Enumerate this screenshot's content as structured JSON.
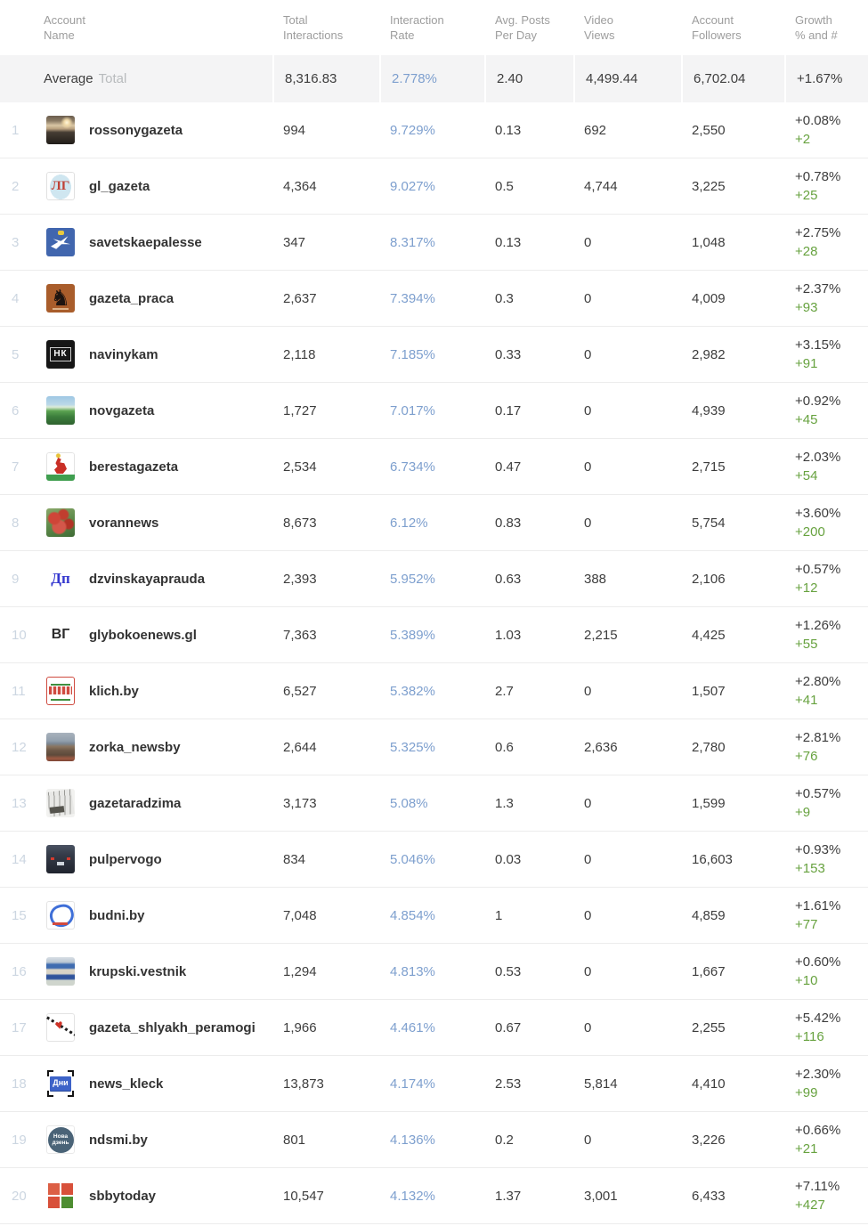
{
  "colors": {
    "link_blue": "#7d9fce",
    "growth_green": "#67a23f",
    "rank_gray": "#ccd6e1",
    "average_row_bg": "#f4f4f5",
    "header_gray": "#9d9d9d"
  },
  "table": {
    "columns": [
      {
        "line1": "Account",
        "line2": "Name"
      },
      {
        "line1": "Total",
        "line2": "Interactions"
      },
      {
        "line1": "Interaction",
        "line2": "Rate"
      },
      {
        "line1": "Avg. Posts",
        "line2": "Per Day"
      },
      {
        "line1": "Video",
        "line2": "Views"
      },
      {
        "line1": "Account",
        "line2": "Followers"
      },
      {
        "line1": "Growth",
        "line2": "% and #"
      }
    ],
    "average_row": {
      "label_primary": "Average",
      "label_secondary": "Total",
      "total_interactions": "8,316.83",
      "interaction_rate": "2.778%",
      "avg_posts_per_day": "2.40",
      "video_views": "4,499.44",
      "account_followers": "6,702.04",
      "growth_percent": "+1.67%"
    },
    "accounts": [
      {
        "rank": "1",
        "name": "rossonygazeta",
        "avatar": "sunset-lake-photo",
        "avatar_text": "",
        "total_interactions": "994",
        "interaction_rate": "9.729%",
        "avg_posts_per_day": "0.13",
        "video_views": "692",
        "account_followers": "2,550",
        "growth_percent": "+0.08%",
        "growth_count": "+2"
      },
      {
        "rank": "2",
        "name": "gl_gazeta",
        "avatar": "red-monogram-map",
        "avatar_text": "ЛГ",
        "total_interactions": "4,364",
        "interaction_rate": "9.027%",
        "avg_posts_per_day": "0.5",
        "video_views": "4,744",
        "account_followers": "3,225",
        "growth_percent": "+0.78%",
        "growth_count": "+25"
      },
      {
        "rank": "3",
        "name": "savetskaepalesse",
        "avatar": "blue-shield-swallow",
        "avatar_text": "",
        "total_interactions": "347",
        "interaction_rate": "8.317%",
        "avg_posts_per_day": "0.13",
        "video_views": "0",
        "account_followers": "1,048",
        "growth_percent": "+2.75%",
        "growth_count": "+28"
      },
      {
        "rank": "4",
        "name": "gazeta_praca",
        "avatar": "orange-horse-emblem",
        "avatar_text": "",
        "total_interactions": "2,637",
        "interaction_rate": "7.394%",
        "avg_posts_per_day": "0.3",
        "video_views": "0",
        "account_followers": "4,009",
        "growth_percent": "+2.37%",
        "growth_count": "+93"
      },
      {
        "rank": "5",
        "name": "navinykam",
        "avatar": "black-monogram-nk",
        "avatar_text": "НК",
        "total_interactions": "2,118",
        "interaction_rate": "7.185%",
        "avg_posts_per_day": "0.33",
        "video_views": "0",
        "account_followers": "2,982",
        "growth_percent": "+3.15%",
        "growth_count": "+91"
      },
      {
        "rank": "6",
        "name": "novgazeta",
        "avatar": "field-sky-photo",
        "avatar_text": "",
        "total_interactions": "1,727",
        "interaction_rate": "7.017%",
        "avg_posts_per_day": "0.17",
        "video_views": "0",
        "account_followers": "4,939",
        "growth_percent": "+0.92%",
        "growth_count": "+45"
      },
      {
        "rank": "7",
        "name": "berestagazeta",
        "avatar": "red-squirrel-crest",
        "avatar_text": "",
        "total_interactions": "2,534",
        "interaction_rate": "6.734%",
        "avg_posts_per_day": "0.47",
        "video_views": "0",
        "account_followers": "2,715",
        "growth_percent": "+2.03%",
        "growth_count": "+54"
      },
      {
        "rank": "8",
        "name": "vorannews",
        "avatar": "red-berries-photo",
        "avatar_text": "",
        "total_interactions": "8,673",
        "interaction_rate": "6.12%",
        "avg_posts_per_day": "0.83",
        "video_views": "0",
        "account_followers": "5,754",
        "growth_percent": "+3.60%",
        "growth_count": "+200"
      },
      {
        "rank": "9",
        "name": "dzvinskayaprauda",
        "avatar": "blue-letters-dp",
        "avatar_text": "Дп",
        "total_interactions": "2,393",
        "interaction_rate": "5.952%",
        "avg_posts_per_day": "0.63",
        "video_views": "388",
        "account_followers": "2,106",
        "growth_percent": "+0.57%",
        "growth_count": "+12"
      },
      {
        "rank": "10",
        "name": "glybokoenews.gl",
        "avatar": "outline-letters-vg",
        "avatar_text": "ВГ",
        "total_interactions": "7,363",
        "interaction_rate": "5.389%",
        "avg_posts_per_day": "1.03",
        "video_views": "2,215",
        "account_followers": "4,425",
        "growth_percent": "+1.26%",
        "growth_count": "+55"
      },
      {
        "rank": "11",
        "name": "klich.by",
        "avatar": "red-green-masthead",
        "avatar_text": "",
        "total_interactions": "6,527",
        "interaction_rate": "5.382%",
        "avg_posts_per_day": "2.7",
        "video_views": "0",
        "account_followers": "1,507",
        "growth_percent": "+2.80%",
        "growth_count": "+41"
      },
      {
        "rank": "12",
        "name": "zorka_newsby",
        "avatar": "city-buildings-photo",
        "avatar_text": "",
        "total_interactions": "2,644",
        "interaction_rate": "5.325%",
        "avg_posts_per_day": "0.6",
        "video_views": "2,636",
        "account_followers": "2,780",
        "growth_percent": "+2.81%",
        "growth_count": "+76"
      },
      {
        "rank": "13",
        "name": "gazetaradzima",
        "avatar": "newspaper-collage",
        "avatar_text": "",
        "total_interactions": "3,173",
        "interaction_rate": "5.08%",
        "avg_posts_per_day": "1.3",
        "video_views": "0",
        "account_followers": "1,599",
        "growth_percent": "+0.57%",
        "growth_count": "+9"
      },
      {
        "rank": "14",
        "name": "pulpervogo",
        "avatar": "night-car-photo",
        "avatar_text": "",
        "total_interactions": "834",
        "interaction_rate": "5.046%",
        "avg_posts_per_day": "0.03",
        "video_views": "0",
        "account_followers": "16,603",
        "growth_percent": "+0.93%",
        "growth_count": "+153"
      },
      {
        "rank": "15",
        "name": "budni.by",
        "avatar": "blue-scribble-logo",
        "avatar_text": "",
        "total_interactions": "7,048",
        "interaction_rate": "4.854%",
        "avg_posts_per_day": "1",
        "video_views": "0",
        "account_followers": "4,859",
        "growth_percent": "+1.61%",
        "growth_count": "+77"
      },
      {
        "rank": "16",
        "name": "krupski.vestnik",
        "avatar": "news-banner-collage",
        "avatar_text": "",
        "total_interactions": "1,294",
        "interaction_rate": "4.813%",
        "avg_posts_per_day": "0.53",
        "video_views": "0",
        "account_followers": "1,667",
        "growth_percent": "+0.60%",
        "growth_count": "+10"
      },
      {
        "rank": "17",
        "name": "gazeta_shlyakh_peramogi",
        "avatar": "heart-diagonal-logo",
        "avatar_text": "",
        "total_interactions": "1,966",
        "interaction_rate": "4.461%",
        "avg_posts_per_day": "0.67",
        "video_views": "0",
        "account_followers": "2,255",
        "growth_percent": "+5.42%",
        "growth_count": "+116"
      },
      {
        "rank": "18",
        "name": "news_kleck",
        "avatar": "blue-plate-dni",
        "avatar_text": "Дни",
        "total_interactions": "13,873",
        "interaction_rate": "4.174%",
        "avg_posts_per_day": "2.53",
        "video_views": "5,814",
        "account_followers": "4,410",
        "growth_percent": "+2.30%",
        "growth_count": "+99"
      },
      {
        "rank": "19",
        "name": "ndsmi.by",
        "avatar": "dark-blue-circle-novy-dzen",
        "avatar_text": "Нова дзень",
        "total_interactions": "801",
        "interaction_rate": "4.136%",
        "avg_posts_per_day": "0.2",
        "video_views": "0",
        "account_followers": "3,226",
        "growth_percent": "+0.66%",
        "growth_count": "+21"
      },
      {
        "rank": "20",
        "name": "sbbytoday",
        "avatar": "four-squares-logo",
        "avatar_text": "",
        "total_interactions": "10,547",
        "interaction_rate": "4.132%",
        "avg_posts_per_day": "1.37",
        "video_views": "3,001",
        "account_followers": "6,433",
        "growth_percent": "+7.11%",
        "growth_count": "+427"
      }
    ]
  }
}
